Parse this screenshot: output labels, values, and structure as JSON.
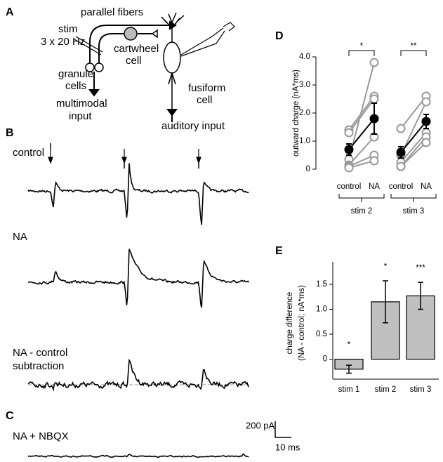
{
  "panel_labels": [
    "A",
    "B",
    "C",
    "D",
    "E"
  ],
  "schematic": {
    "parallel_fibers": "parallel fibers",
    "stim": "stim",
    "stim_rate": "3 x 20 Hz",
    "cartwheel": [
      "cartwheel",
      "cell"
    ],
    "granule": [
      "granule",
      "cells"
    ],
    "multimodal": [
      "multimodal",
      "input"
    ],
    "fusiform": [
      "fusiform",
      "cell"
    ],
    "auditory": "auditory input"
  },
  "traces": {
    "control": "control",
    "na": "NA",
    "subtraction": [
      "NA - control",
      "subtraction"
    ],
    "nbqx": "NA + NBQX",
    "scale_current": "200 pA",
    "scale_time": "10 ms"
  },
  "chart_data": [
    {
      "type": "line",
      "y_label": "outward charge (nA*ms)",
      "categories": [
        "control",
        "NA",
        "control",
        "NA"
      ],
      "groups": [
        {
          "label": "stim 2",
          "significance": "*"
        },
        {
          "label": "stim 3",
          "significance": "**"
        }
      ],
      "ylim": [
        0,
        4.0
      ],
      "yticks": [
        0,
        {
          "value": 1,
          "label": "1.0"
        },
        {
          "value": 2,
          "label": "2.0"
        },
        {
          "value": 3,
          "label": "3.0"
        },
        {
          "value": 4,
          "label": "4.0"
        }
      ],
      "series": [
        {
          "color": "#999999",
          "values": [
            1.4,
            2.6,
            null,
            null
          ]
        },
        {
          "color": "#999999",
          "values": [
            1.3,
            2.5,
            null,
            null
          ]
        },
        {
          "color": "#999999",
          "values": [
            0.35,
            3.8,
            null,
            null
          ]
        },
        {
          "color": "#999999",
          "values": [
            0.15,
            1.15,
            null,
            null
          ]
        },
        {
          "color": "#999999",
          "values": [
            0.1,
            0.5,
            null,
            null
          ]
        },
        {
          "color": "#999999",
          "values": [
            0.05,
            0.3,
            null,
            null
          ]
        },
        {
          "color": "#999999",
          "values": [
            null,
            null,
            1.45,
            2.6
          ]
        },
        {
          "color": "#999999",
          "values": [
            null,
            null,
            0.5,
            2.4
          ]
        },
        {
          "color": "#999999",
          "values": [
            null,
            null,
            0.25,
            1.3
          ]
        },
        {
          "color": "#999999",
          "values": [
            null,
            null,
            0.1,
            1.15
          ]
        },
        {
          "color": "#999999",
          "values": [
            null,
            null,
            0.1,
            0.95
          ]
        },
        {
          "color": "#000000",
          "values": [
            0.7,
            1.8,
            null,
            null
          ],
          "errors": [
            0.2,
            0.55,
            null,
            null
          ]
        },
        {
          "color": "#000000",
          "values": [
            null,
            null,
            0.6,
            1.7
          ],
          "errors": [
            null,
            null,
            0.2,
            0.25
          ]
        }
      ]
    },
    {
      "type": "bar",
      "y_label": [
        "charge difference",
        "(NA - control; nA*ms)"
      ],
      "categories": [
        "stim 1",
        "stim 2",
        "stim 3"
      ],
      "values": [
        -0.2,
        1.15,
        1.27
      ],
      "errors": [
        0.08,
        0.42,
        0.27
      ],
      "significance": [
        "*",
        "*",
        "***"
      ],
      "color": "#c0c0c0",
      "ylim": [
        -0.4,
        1.95
      ],
      "yticks": [
        0,
        0.5,
        {
          "value": 1,
          "label": "1.0"
        },
        1.5
      ]
    }
  ]
}
